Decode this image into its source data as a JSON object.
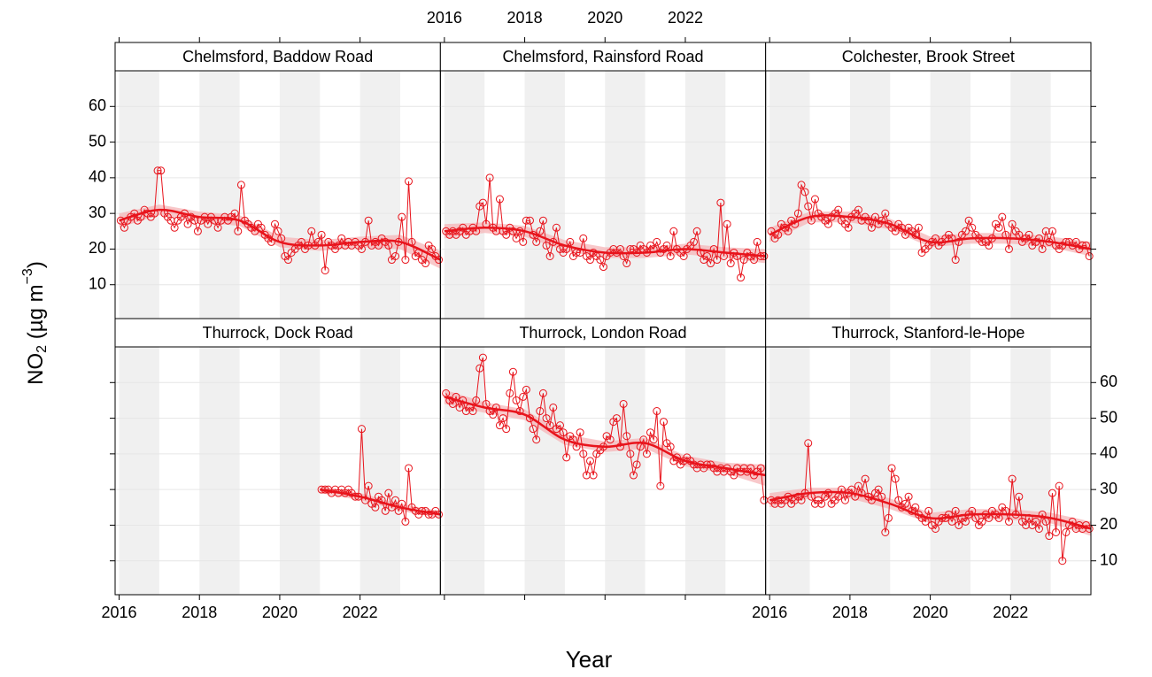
{
  "chart_data": {
    "type": "line",
    "xlabel": "Year",
    "ylabel": {
      "main": "NO",
      "sub": "2",
      "unit": " (µg m",
      "sup": "−3",
      "end": ")"
    },
    "color": "#e8141c",
    "band_color": "#f6b6b8",
    "shading": true,
    "grid": true,
    "xlim": [
      2015.9,
      2024.0
    ],
    "xticks": [
      2016,
      2018,
      2020,
      2022
    ],
    "ylim": [
      0.5,
      70
    ],
    "yticks": [
      10,
      20,
      30,
      40,
      50,
      60
    ],
    "x": [
      2016.04,
      2016.13,
      2016.21,
      2016.29,
      2016.38,
      2016.46,
      2016.54,
      2016.63,
      2016.71,
      2016.79,
      2016.88,
      2016.96,
      2017.04,
      2017.13,
      2017.21,
      2017.29,
      2017.38,
      2017.46,
      2017.54,
      2017.63,
      2017.71,
      2017.79,
      2017.88,
      2017.96,
      2018.04,
      2018.13,
      2018.21,
      2018.29,
      2018.38,
      2018.46,
      2018.54,
      2018.63,
      2018.71,
      2018.79,
      2018.88,
      2018.96,
      2019.04,
      2019.13,
      2019.21,
      2019.29,
      2019.38,
      2019.46,
      2019.54,
      2019.63,
      2019.71,
      2019.79,
      2019.88,
      2019.96,
      2020.04,
      2020.13,
      2020.21,
      2020.29,
      2020.38,
      2020.46,
      2020.54,
      2020.63,
      2020.71,
      2020.79,
      2020.88,
      2020.96,
      2021.04,
      2021.13,
      2021.21,
      2021.29,
      2021.38,
      2021.46,
      2021.54,
      2021.63,
      2021.71,
      2021.79,
      2021.88,
      2021.96,
      2022.04,
      2022.13,
      2022.21,
      2022.29,
      2022.38,
      2022.46,
      2022.54,
      2022.63,
      2022.71,
      2022.79,
      2022.88,
      2022.96,
      2023.04,
      2023.13,
      2023.21,
      2023.29,
      2023.38,
      2023.46,
      2023.54,
      2023.63,
      2023.71,
      2023.79,
      2023.88,
      2023.96
    ],
    "trend_x": [
      2016,
      2017,
      2018,
      2019,
      2020,
      2021,
      2022,
      2023,
      2024
    ],
    "panels": [
      {
        "title": "Chelmsford, Baddow Road",
        "values": [
          28,
          26,
          28,
          29,
          30,
          28,
          29,
          31,
          30,
          29,
          30,
          42,
          42,
          30,
          29,
          28,
          26,
          28,
          29,
          30,
          27,
          29,
          28,
          25,
          28,
          29,
          27,
          29,
          28,
          26,
          28,
          29,
          28,
          29,
          30,
          25,
          38,
          28,
          27,
          26,
          25,
          27,
          26,
          24,
          23,
          22,
          27,
          25,
          23,
          18,
          17,
          19,
          20,
          21,
          22,
          20,
          21,
          25,
          21,
          22,
          24,
          14,
          22,
          21,
          20,
          21,
          23,
          21,
          22,
          21,
          22,
          21,
          20,
          22,
          28,
          21,
          22,
          21,
          23,
          22,
          21,
          17,
          18,
          22,
          29,
          17,
          39,
          22,
          18,
          19,
          17,
          16,
          21,
          20,
          18,
          17
        ],
        "trend": [
          28,
          31,
          29,
          28,
          22,
          21,
          22,
          22,
          17
        ],
        "lower": [
          26,
          29.5,
          27.5,
          26.5,
          20.5,
          19.5,
          20.5,
          20,
          14.5
        ],
        "upper": [
          30,
          32.5,
          30.5,
          29.5,
          23.5,
          22.5,
          23.5,
          24,
          19.5
        ]
      },
      {
        "title": "Chelmsford, Rainsford Road",
        "values": [
          25,
          24,
          25,
          24,
          25,
          26,
          24,
          25,
          26,
          25,
          32,
          33,
          27,
          40,
          26,
          25,
          34,
          25,
          24,
          26,
          25,
          23,
          25,
          22,
          28,
          28,
          24,
          22,
          25,
          28,
          21,
          18,
          22,
          26,
          20,
          19,
          20,
          22,
          18,
          19,
          19,
          23,
          18,
          17,
          19,
          18,
          17,
          15,
          18,
          19,
          20,
          19,
          20,
          18,
          16,
          20,
          20,
          19,
          21,
          20,
          19,
          21,
          20,
          22,
          19,
          20,
          21,
          18,
          25,
          20,
          19,
          18,
          20,
          21,
          22,
          25,
          19,
          17,
          18,
          16,
          20,
          17,
          33,
          18,
          27,
          16,
          19,
          18,
          12,
          17,
          19,
          18,
          17,
          22,
          18,
          18
        ],
        "trend": [
          25,
          26,
          25,
          21,
          19,
          19,
          20,
          19,
          18
        ],
        "lower": [
          23,
          24.5,
          23.5,
          19.5,
          17.5,
          17.5,
          18.5,
          17.5,
          16
        ],
        "upper": [
          27,
          27.5,
          26.5,
          22.5,
          20.5,
          20.5,
          21.5,
          20.5,
          20
        ]
      },
      {
        "title": "Colchester, Brook Street",
        "values": [
          25,
          23,
          24,
          27,
          26,
          25,
          28,
          27,
          30,
          38,
          36,
          32,
          28,
          34,
          30,
          29,
          28,
          27,
          29,
          30,
          31,
          28,
          27,
          26,
          29,
          30,
          31,
          28,
          29,
          28,
          26,
          29,
          27,
          28,
          30,
          27,
          26,
          25,
          27,
          26,
          24,
          26,
          25,
          24,
          26,
          19,
          20,
          21,
          22,
          23,
          21,
          22,
          23,
          24,
          23,
          17,
          22,
          24,
          25,
          28,
          26,
          24,
          23,
          22,
          22,
          21,
          23,
          27,
          26,
          29,
          24,
          20,
          27,
          25,
          24,
          22,
          23,
          24,
          21,
          22,
          23,
          20,
          25,
          22,
          25,
          21,
          20,
          21,
          22,
          22,
          21,
          22,
          20,
          21,
          21,
          18
        ],
        "trend": [
          24,
          29,
          29,
          27,
          22,
          23,
          23,
          22,
          20
        ],
        "lower": [
          22,
          27.5,
          27.5,
          25.5,
          20.5,
          21.5,
          21.5,
          20.5,
          18
        ],
        "upper": [
          26,
          30.5,
          30.5,
          28.5,
          23.5,
          24.5,
          24.5,
          23.5,
          22
        ]
      },
      {
        "title": "Thurrock, Dock Road",
        "values": [
          null,
          null,
          null,
          null,
          null,
          null,
          null,
          null,
          null,
          null,
          null,
          null,
          null,
          null,
          null,
          null,
          null,
          null,
          null,
          null,
          null,
          null,
          null,
          null,
          null,
          null,
          null,
          null,
          null,
          null,
          null,
          null,
          null,
          null,
          null,
          null,
          null,
          null,
          null,
          null,
          null,
          null,
          null,
          null,
          null,
          null,
          null,
          null,
          null,
          null,
          null,
          null,
          null,
          null,
          null,
          null,
          null,
          null,
          null,
          null,
          30,
          30,
          30,
          29,
          30,
          29,
          30,
          29,
          30,
          29,
          28,
          28,
          47,
          27,
          31,
          26,
          25,
          28,
          27,
          24,
          29,
          25,
          27,
          24,
          26,
          21,
          36,
          25,
          24,
          23,
          24,
          24,
          23,
          23,
          24,
          23
        ],
        "trend": [
          null,
          null,
          null,
          null,
          null,
          30,
          28,
          25,
          23
        ],
        "lower": [
          null,
          null,
          null,
          null,
          null,
          29,
          27,
          24,
          22
        ],
        "upper": [
          null,
          null,
          null,
          null,
          null,
          31,
          29,
          26,
          24
        ]
      },
      {
        "title": "Thurrock, London Road",
        "values": [
          57,
          55,
          54,
          56,
          53,
          55,
          52,
          53,
          52,
          55,
          64,
          67,
          54,
          52,
          51,
          53,
          48,
          50,
          47,
          57,
          63,
          55,
          52,
          56,
          58,
          50,
          47,
          44,
          52,
          57,
          50,
          48,
          53,
          47,
          48,
          46,
          39,
          45,
          44,
          42,
          46,
          40,
          34,
          38,
          34,
          40,
          41,
          42,
          45,
          44,
          49,
          50,
          42,
          54,
          45,
          40,
          34,
          37,
          42,
          44,
          40,
          46,
          44,
          52,
          31,
          49,
          43,
          42,
          38,
          39,
          37,
          38,
          39,
          38,
          37,
          36,
          37,
          36,
          37,
          37,
          36,
          35,
          36,
          35,
          36,
          35,
          34,
          36,
          35,
          36,
          35,
          36,
          34,
          35,
          36,
          27
        ],
        "trend": [
          56,
          53,
          51,
          44,
          42,
          43,
          38,
          36,
          34
        ],
        "lower": [
          54,
          51.5,
          49.5,
          42.5,
          40.5,
          41.5,
          36.5,
          34.5,
          31
        ],
        "upper": [
          58,
          54.5,
          52.5,
          45.5,
          43.5,
          44.5,
          39.5,
          37.5,
          37
        ]
      },
      {
        "title": "Thurrock, Stanford-le-Hope",
        "values": [
          27,
          26,
          27,
          26,
          27,
          28,
          26,
          27,
          28,
          27,
          29,
          43,
          28,
          26,
          27,
          26,
          28,
          29,
          26,
          27,
          28,
          30,
          27,
          29,
          30,
          28,
          31,
          29,
          33,
          28,
          27,
          29,
          30,
          28,
          18,
          22,
          36,
          33,
          27,
          25,
          26,
          28,
          24,
          25,
          23,
          22,
          21,
          24,
          20,
          19,
          21,
          22,
          22,
          23,
          21,
          24,
          20,
          22,
          21,
          23,
          24,
          22,
          20,
          21,
          23,
          22,
          24,
          23,
          22,
          25,
          24,
          21,
          33,
          23,
          28,
          21,
          20,
          22,
          20,
          21,
          19,
          23,
          21,
          17,
          29,
          18,
          31,
          10,
          18,
          20,
          21,
          19,
          20,
          19,
          20,
          19
        ],
        "trend": [
          27,
          29,
          29,
          26,
          22,
          23,
          23,
          22,
          19
        ],
        "lower": [
          25,
          27.5,
          27.5,
          24.5,
          20.5,
          21.5,
          21.5,
          20.5,
          17
        ],
        "upper": [
          29,
          30.5,
          30.5,
          27.5,
          23.5,
          24.5,
          24.5,
          23.5,
          21
        ]
      }
    ]
  }
}
